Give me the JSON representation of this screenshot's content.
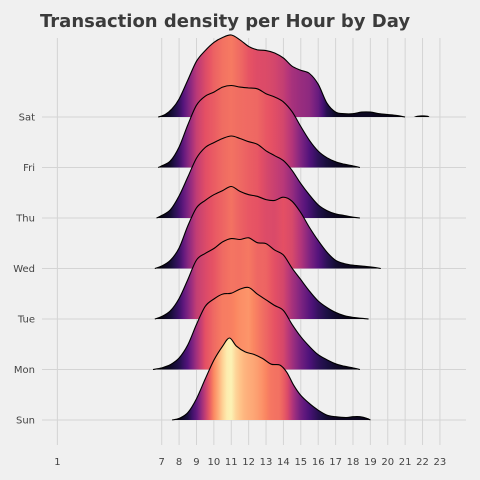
{
  "chart_data": {
    "type": "ridgeline",
    "title": "Transaction density per Hour by Day",
    "xlabel": "",
    "ylabel": "",
    "x_ticks": [
      1,
      7,
      8,
      9,
      10,
      11,
      12,
      13,
      14,
      15,
      16,
      17,
      18,
      19,
      20,
      21,
      22,
      23
    ],
    "y_categories": [
      "Sun",
      "Mon",
      "Tue",
      "Wed",
      "Thu",
      "Fri",
      "Sat"
    ],
    "grid": true,
    "colormap": "magma",
    "series": [
      {
        "name": "Sun",
        "points": [
          [
            7.6,
            0
          ],
          [
            8,
            0.02
          ],
          [
            8.5,
            0.09
          ],
          [
            9,
            0.26
          ],
          [
            9.5,
            0.5
          ],
          [
            10,
            0.73
          ],
          [
            10.5,
            0.9
          ],
          [
            10.9,
            1.0
          ],
          [
            11.3,
            0.9
          ],
          [
            11.8,
            0.83
          ],
          [
            12.3,
            0.8
          ],
          [
            12.8,
            0.75
          ],
          [
            13.3,
            0.68
          ],
          [
            13.8,
            0.67
          ],
          [
            14.2,
            0.58
          ],
          [
            14.6,
            0.42
          ],
          [
            15,
            0.3
          ],
          [
            15.5,
            0.2
          ],
          [
            16,
            0.12
          ],
          [
            16.5,
            0.06
          ],
          [
            17,
            0.04
          ],
          [
            17.6,
            0.03
          ],
          [
            18,
            0.04
          ],
          [
            18.4,
            0.04
          ],
          [
            18.8,
            0.02
          ],
          [
            19,
            0
          ]
        ]
      },
      {
        "name": "Mon",
        "points": [
          [
            6.5,
            0
          ],
          [
            7,
            0.02
          ],
          [
            7.5,
            0.06
          ],
          [
            8,
            0.14
          ],
          [
            8.5,
            0.3
          ],
          [
            9,
            0.55
          ],
          [
            9.5,
            0.77
          ],
          [
            10,
            0.86
          ],
          [
            10.5,
            0.92
          ],
          [
            11,
            0.93
          ],
          [
            11.5,
            0.98
          ],
          [
            12,
            1.0
          ],
          [
            12.5,
            0.92
          ],
          [
            13,
            0.85
          ],
          [
            13.5,
            0.78
          ],
          [
            14,
            0.72
          ],
          [
            14.5,
            0.55
          ],
          [
            15,
            0.4
          ],
          [
            15.5,
            0.28
          ],
          [
            16,
            0.18
          ],
          [
            16.5,
            0.12
          ],
          [
            17,
            0.07
          ],
          [
            17.5,
            0.04
          ],
          [
            18,
            0.02
          ],
          [
            18.4,
            0
          ]
        ]
      },
      {
        "name": "Tue",
        "points": [
          [
            6.6,
            0
          ],
          [
            7,
            0.03
          ],
          [
            7.5,
            0.1
          ],
          [
            8,
            0.25
          ],
          [
            8.5,
            0.48
          ],
          [
            9,
            0.72
          ],
          [
            9.5,
            0.8
          ],
          [
            10,
            0.86
          ],
          [
            10.5,
            0.94
          ],
          [
            11,
            0.98
          ],
          [
            11.5,
            0.97
          ],
          [
            12,
            0.99
          ],
          [
            12.5,
            0.93
          ],
          [
            13,
            0.92
          ],
          [
            13.5,
            0.84
          ],
          [
            14,
            0.78
          ],
          [
            14.5,
            0.62
          ],
          [
            15,
            0.48
          ],
          [
            15.5,
            0.34
          ],
          [
            16,
            0.22
          ],
          [
            16.5,
            0.14
          ],
          [
            17,
            0.08
          ],
          [
            17.5,
            0.04
          ],
          [
            18,
            0.02
          ],
          [
            18.9,
            0
          ]
        ]
      },
      {
        "name": "Wed",
        "points": [
          [
            6.6,
            0
          ],
          [
            7,
            0.03
          ],
          [
            7.5,
            0.1
          ],
          [
            8,
            0.25
          ],
          [
            8.5,
            0.52
          ],
          [
            9,
            0.74
          ],
          [
            9.5,
            0.83
          ],
          [
            10,
            0.9
          ],
          [
            10.5,
            0.95
          ],
          [
            11,
            1.0
          ],
          [
            11.5,
            0.94
          ],
          [
            12,
            0.9
          ],
          [
            12.5,
            0.88
          ],
          [
            13,
            0.84
          ],
          [
            13.5,
            0.83
          ],
          [
            14,
            0.87
          ],
          [
            14.5,
            0.82
          ],
          [
            15,
            0.68
          ],
          [
            15.5,
            0.5
          ],
          [
            16,
            0.34
          ],
          [
            16.5,
            0.2
          ],
          [
            17,
            0.1
          ],
          [
            17.5,
            0.06
          ],
          [
            18,
            0.04
          ],
          [
            18.5,
            0.03
          ],
          [
            19,
            0.02
          ],
          [
            19.6,
            0
          ]
        ]
      },
      {
        "name": "Thu",
        "points": [
          [
            6.7,
            0
          ],
          [
            7,
            0.03
          ],
          [
            7.5,
            0.1
          ],
          [
            8,
            0.27
          ],
          [
            8.5,
            0.5
          ],
          [
            9,
            0.73
          ],
          [
            9.5,
            0.86
          ],
          [
            10,
            0.92
          ],
          [
            10.5,
            0.97
          ],
          [
            11,
            1.0
          ],
          [
            11.5,
            0.97
          ],
          [
            12,
            0.93
          ],
          [
            12.5,
            0.9
          ],
          [
            13,
            0.82
          ],
          [
            13.5,
            0.76
          ],
          [
            14,
            0.7
          ],
          [
            14.5,
            0.58
          ],
          [
            15,
            0.42
          ],
          [
            15.5,
            0.28
          ],
          [
            16,
            0.16
          ],
          [
            16.5,
            0.09
          ],
          [
            17,
            0.05
          ],
          [
            17.5,
            0.03
          ],
          [
            18,
            0.01
          ],
          [
            18.4,
            0
          ]
        ]
      },
      {
        "name": "Fri",
        "points": [
          [
            6.8,
            0
          ],
          [
            7,
            0.02
          ],
          [
            7.5,
            0.08
          ],
          [
            8,
            0.25
          ],
          [
            8.5,
            0.52
          ],
          [
            9,
            0.76
          ],
          [
            9.5,
            0.87
          ],
          [
            10,
            0.92
          ],
          [
            10.5,
            0.98
          ],
          [
            11,
            1.0
          ],
          [
            11.5,
            0.98
          ],
          [
            12,
            0.97
          ],
          [
            12.5,
            0.96
          ],
          [
            13,
            0.9
          ],
          [
            13.5,
            0.86
          ],
          [
            14,
            0.8
          ],
          [
            14.5,
            0.68
          ],
          [
            15,
            0.5
          ],
          [
            15.5,
            0.33
          ],
          [
            16,
            0.2
          ],
          [
            16.5,
            0.12
          ],
          [
            17,
            0.07
          ],
          [
            17.5,
            0.04
          ],
          [
            18,
            0.02
          ],
          [
            18.4,
            0
          ]
        ]
      },
      {
        "name": "Sat",
        "points": [
          [
            6.8,
            0
          ],
          [
            7.2,
            0.03
          ],
          [
            7.6,
            0.1
          ],
          [
            8,
            0.22
          ],
          [
            8.5,
            0.45
          ],
          [
            9,
            0.68
          ],
          [
            9.5,
            0.81
          ],
          [
            10,
            0.91
          ],
          [
            10.5,
            0.97
          ],
          [
            11,
            1.0
          ],
          [
            11.5,
            0.94
          ],
          [
            12,
            0.86
          ],
          [
            12.5,
            0.82
          ],
          [
            13,
            0.81
          ],
          [
            13.5,
            0.78
          ],
          [
            14,
            0.72
          ],
          [
            14.5,
            0.62
          ],
          [
            15,
            0.57
          ],
          [
            15.5,
            0.53
          ],
          [
            16,
            0.4
          ],
          [
            16.5,
            0.17
          ],
          [
            17,
            0.06
          ],
          [
            17.5,
            0.04
          ],
          [
            18,
            0.04
          ],
          [
            18.5,
            0.06
          ],
          [
            19,
            0.06
          ],
          [
            19.5,
            0.04
          ],
          [
            20,
            0.03
          ],
          [
            20.5,
            0.02
          ],
          [
            21,
            0
          ]
        ],
        "extra_segments": [
          [
            [
              21.5,
              0
            ],
            [
              21.7,
              0.015
            ],
            [
              22,
              0.02
            ],
            [
              22.3,
              0.015
            ],
            [
              22.4,
              0
            ]
          ]
        ]
      }
    ],
    "x_domain": [
      0,
      24.5
    ]
  }
}
